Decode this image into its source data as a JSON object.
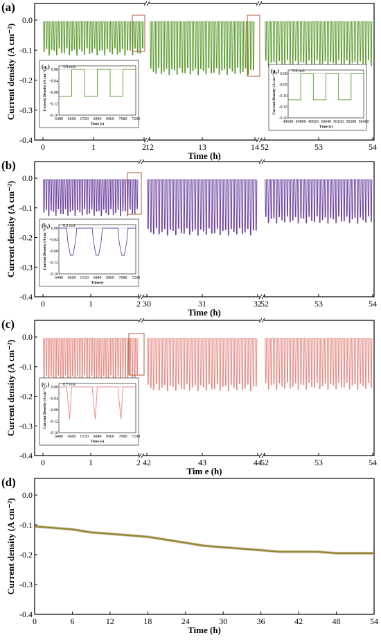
{
  "figure": {
    "panels": [
      {
        "label": "(a)",
        "color": "#5a9a2c",
        "ylabel": "Current density (A cm⁻²)",
        "xlabel": "Time (h)",
        "yticks": [
          "0.0",
          "-0.1",
          "-0.2",
          "-0.3",
          "-0.4"
        ],
        "segments": [
          {
            "ticks": [
              "0",
              "1",
              "2"
            ]
          },
          {
            "ticks": [
              "12",
              "13",
              "14"
            ]
          },
          {
            "ticks": [
              "52",
              "53",
              "54"
            ]
          }
        ],
        "insets": [
          {
            "label": "(a₁)",
            "annotation": "3.8 mA",
            "ylabel": "Current Density (A cm⁻²)",
            "xlabel": "Time (s)",
            "xticks": [
              "6480",
              "6600",
              "6720",
              "6840",
              "6960",
              "7080",
              "7200"
            ],
            "yticks": [
              "0.00",
              "-0.04",
              "-0.08",
              "-0.12",
              "-0.16"
            ]
          },
          {
            "label": "(a₂)",
            "annotation": "5.0 mA",
            "ylabel": "Current Density (A cm⁻²)",
            "xlabel": "Time (s)",
            "xticks": [
              "49680",
              "49800",
              "49920",
              "50040",
              "50160",
              "50280",
              "50400"
            ],
            "yticks": [
              "0.00",
              "-0.05",
              "-0.10",
              "-0.15",
              "-0.20"
            ]
          }
        ]
      },
      {
        "label": "(b)",
        "color": "#6b3f9e",
        "ylabel": "Current density (A cm⁻²)",
        "xlabel": "Time (h)",
        "yticks": [
          "0.0",
          "-0.1",
          "-0.2",
          "-0.3",
          "-0.4"
        ],
        "segments": [
          {
            "ticks": [
              "0",
              "1",
              "2"
            ]
          },
          {
            "ticks": [
              "30",
              "31",
              "32"
            ]
          },
          {
            "ticks": [
              "52",
              "53",
              "54"
            ]
          }
        ],
        "insets": [
          {
            "label": "(b₁)",
            "annotation": "0.2 mA",
            "ylabel": "Current Density (A cm⁻²)",
            "xlabel": "Time(s)",
            "xticks": [
              "6480",
              "6600",
              "6720",
              "6840",
              "6960",
              "7080",
              "7200"
            ],
            "yticks": [
              "0.00",
              "-0.04",
              "-0.08",
              "-0.12",
              "-0.16"
            ]
          }
        ]
      },
      {
        "label": "(c)",
        "color": "#e48a83",
        "ylabel": "Current density (A cm⁻²)",
        "xlabel": "Tim e (h)",
        "yticks": [
          "0.0",
          "-0.1",
          "-0.2",
          "-0.3",
          "-0.4"
        ],
        "segments": [
          {
            "ticks": [
              "0",
              "1",
              "2"
            ]
          },
          {
            "ticks": [
              "42",
              "43",
              "44"
            ]
          },
          {
            "ticks": [
              "52",
              "53",
              "54"
            ]
          }
        ],
        "insets": [
          {
            "label": "(c₁)",
            "annotation": "0.7 mA",
            "ylabel": "Current Density (A cm⁻²)",
            "xlabel": "Time (s)",
            "xticks": [
              "6480",
              "6600",
              "6720",
              "6840",
              "6960",
              "7080",
              "7200"
            ],
            "yticks": [
              "0.00",
              "-0.04",
              "-0.08",
              "-0.12",
              "-0.16"
            ]
          }
        ]
      },
      {
        "label": "(d)",
        "color": "#8a8a2a",
        "ylabel": "Current density (A cm⁻²)",
        "xlabel": "Time (h)",
        "yticks": [
          "0.0",
          "-0.1",
          "-0.2",
          "-0.3",
          "-0.4"
        ],
        "xticks": [
          "0",
          "6",
          "12",
          "18",
          "24",
          "30",
          "36",
          "42",
          "48",
          "54"
        ]
      }
    ]
  },
  "chart_data": [
    {
      "type": "line",
      "panel": "(a)",
      "ylim": [
        -0.4,
        0.0
      ],
      "segments": [
        {
          "xlim": [
            0,
            2
          ],
          "baseline": -0.005,
          "peak": -0.105,
          "cycles": 40
        },
        {
          "xlim": [
            12,
            14
          ],
          "baseline": -0.005,
          "peak": -0.17,
          "cycles": 40
        },
        {
          "xlim": [
            52,
            54
          ],
          "baseline": -0.005,
          "peak": -0.145,
          "cycles": 40
        }
      ],
      "inset_a1": {
        "x_s": [
          6480,
          6560,
          6560,
          6600,
          6600,
          6800,
          6800,
          6840,
          6840,
          7040,
          7040,
          7080,
          7080,
          7200
        ],
        "y": [
          -0.06,
          -0.06,
          -0.06,
          0.0,
          0.0,
          0.0,
          -0.06,
          -0.06,
          0.0,
          0.0,
          -0.06,
          -0.06,
          0.0,
          0.0
        ]
      },
      "inset_a2": {
        "x_s": [
          49680,
          49800,
          49800,
          49920,
          49920,
          50160,
          50160,
          50280,
          50280,
          50400
        ],
        "y": [
          -0.15,
          -0.15,
          0.0,
          0.0,
          -0.15,
          -0.15,
          0.0,
          0.0,
          -0.15,
          -0.15
        ]
      }
    },
    {
      "type": "line",
      "panel": "(b)",
      "ylim": [
        -0.4,
        0.0
      ],
      "segments": [
        {
          "xlim": [
            0,
            2
          ],
          "baseline": -0.005,
          "peak": -0.115,
          "cycles": 40
        },
        {
          "xlim": [
            30,
            32
          ],
          "baseline": -0.005,
          "peak": -0.18,
          "cycles": 40
        },
        {
          "xlim": [
            52,
            54
          ],
          "baseline": -0.005,
          "peak": -0.14,
          "cycles": 40
        }
      ]
    },
    {
      "type": "line",
      "panel": "(c)",
      "ylim": [
        -0.4,
        0.0
      ],
      "segments": [
        {
          "xlim": [
            0,
            2
          ],
          "baseline": -0.005,
          "peak": -0.14,
          "cycles": 40
        },
        {
          "xlim": [
            42,
            44
          ],
          "baseline": -0.005,
          "peak": -0.17,
          "cycles": 40
        },
        {
          "xlim": [
            52,
            54
          ],
          "baseline": -0.005,
          "peak": -0.165,
          "cycles": 40
        }
      ]
    },
    {
      "type": "line",
      "panel": "(d)",
      "xlim": [
        0,
        54
      ],
      "ylim": [
        -0.4,
        0.0
      ],
      "x": [
        0,
        3,
        6,
        9,
        12,
        15,
        18,
        21,
        24,
        27,
        30,
        33,
        36,
        39,
        42,
        45,
        48,
        51,
        54
      ],
      "y": [
        -0.105,
        -0.11,
        -0.115,
        -0.125,
        -0.13,
        -0.135,
        -0.14,
        -0.15,
        -0.16,
        -0.17,
        -0.175,
        -0.18,
        -0.185,
        -0.19,
        -0.19,
        -0.19,
        -0.195,
        -0.195,
        -0.195
      ]
    }
  ]
}
